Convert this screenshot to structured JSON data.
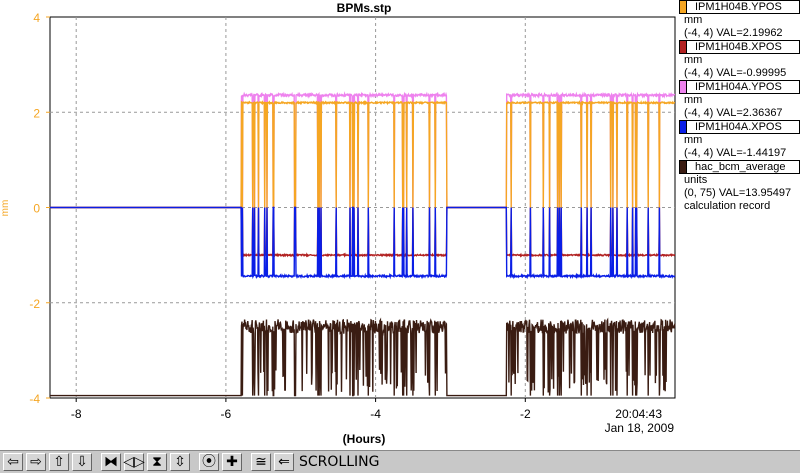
{
  "chart_data": {
    "type": "line",
    "title": "BPMs.stp",
    "xlabel": "(Hours)",
    "ylabel": "mm",
    "xlim": [
      -8.35,
      0
    ],
    "ylim": [
      -4,
      4
    ],
    "x_ticks": [
      -8,
      -6,
      -4,
      -2
    ],
    "y_ticks": [
      -4,
      -2,
      0,
      2,
      4
    ],
    "right_tick_time": "20:04:43",
    "right_tick_date": "Jan 18, 2009",
    "grid": true,
    "legend_position": "right",
    "series": [
      {
        "name": "IPM1H04B.YPOS",
        "color": "#f5a623",
        "unit": "mm",
        "range": "(-4, 4) VAL=2.19962",
        "desc": ""
      },
      {
        "name": "IPM1H04B.XPOS",
        "color": "#b22222",
        "unit": "mm",
        "range": "(-4, 4) VAL=-0.99995",
        "desc": ""
      },
      {
        "name": "IPM1H04A.YPOS",
        "color": "#ee82ee",
        "unit": "mm",
        "range": "(-4, 4) VAL=2.36367",
        "desc": ""
      },
      {
        "name": "IPM1H04A.XPOS",
        "color": "#0a1ee6",
        "unit": "mm",
        "range": "(-4, 4) VAL=-1.44197",
        "desc": ""
      },
      {
        "name": "hac_bcm_average",
        "color": "#3a1c12",
        "unit": "units",
        "range": "(0, 75) VAL=13.95497",
        "desc": "calculation record"
      }
    ],
    "beam_on_intervals": [
      [
        -5.8,
        -3.05
      ],
      [
        -2.25,
        0
      ]
    ],
    "beam_levels": {
      "off": {
        "ypos": 0,
        "xpos": 0,
        "bcm": -3.95
      },
      "on": {
        "ypos_b": 2.2,
        "ypos_a": 2.36,
        "xpos_b": -1.0,
        "xpos_a": -1.44,
        "bcm": -2.5
      }
    }
  },
  "toolbar": {
    "icons": [
      "arrow-left-icon",
      "arrow-right-icon",
      "arrow-up-icon",
      "arrow-down-icon",
      "zoom-in-x-icon",
      "zoom-out-x-icon",
      "zoom-in-y-icon",
      "zoom-out-y-icon",
      "record-icon",
      "add-icon",
      "fit-icon",
      "back-icon"
    ],
    "glyphs": [
      "⇦",
      "⇨",
      "⇧",
      "⇩",
      "⧓",
      "◁▷",
      "⧗",
      "⇳",
      "⦿",
      "✚",
      "≅",
      "⇐"
    ],
    "status": "SCROLLING"
  }
}
